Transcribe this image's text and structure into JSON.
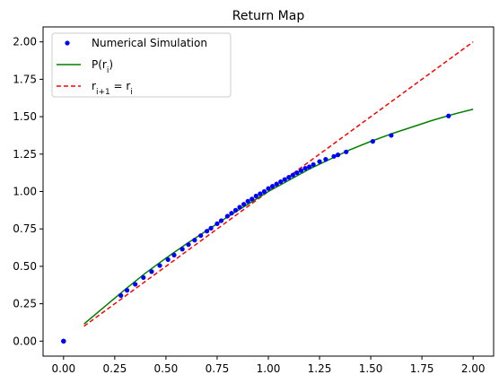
{
  "chart_data": {
    "type": "scatter",
    "title": "Return Map",
    "xlabel": "",
    "ylabel": "",
    "xlim": [
      -0.1,
      2.1
    ],
    "ylim": [
      -0.1,
      2.1
    ],
    "xticks": [
      "0.00",
      "0.25",
      "0.50",
      "0.75",
      "1.00",
      "1.25",
      "1.50",
      "1.75",
      "2.00"
    ],
    "yticks": [
      "0.00",
      "0.25",
      "0.50",
      "0.75",
      "1.00",
      "1.25",
      "1.50",
      "1.75",
      "2.00"
    ],
    "grid": false,
    "legend_position": "top-left",
    "series": [
      {
        "name": "Numerical Simulation",
        "kind": "scatter",
        "color": "#0000ff",
        "x": [
          0.0,
          0.0,
          0.0,
          0.0,
          0.0,
          0.28,
          0.31,
          0.35,
          0.39,
          0.43,
          0.47,
          0.51,
          0.54,
          0.58,
          0.61,
          0.64,
          0.67,
          0.7,
          0.72,
          0.75,
          0.77,
          0.8,
          0.82,
          0.84,
          0.86,
          0.88,
          0.9,
          0.92,
          0.94,
          0.96,
          0.98,
          1.0,
          1.02,
          1.04,
          1.06,
          1.08,
          1.1,
          1.12,
          1.14,
          1.16,
          1.18,
          1.2,
          1.22,
          1.25,
          1.28,
          1.32,
          1.34,
          1.38,
          1.51,
          1.6,
          1.88
        ],
        "y": [
          0.0,
          0.0,
          0.0,
          0.0,
          0.0,
          0.305,
          0.34,
          0.38,
          0.425,
          0.465,
          0.505,
          0.545,
          0.575,
          0.615,
          0.645,
          0.675,
          0.705,
          0.735,
          0.755,
          0.785,
          0.805,
          0.835,
          0.855,
          0.875,
          0.895,
          0.915,
          0.935,
          0.95,
          0.97,
          0.985,
          1.0,
          1.02,
          1.035,
          1.05,
          1.065,
          1.08,
          1.095,
          1.11,
          1.125,
          1.14,
          1.155,
          1.165,
          1.18,
          1.2,
          1.215,
          1.235,
          1.245,
          1.265,
          1.335,
          1.375,
          1.505
        ]
      },
      {
        "name": "P(r_i)",
        "kind": "line",
        "color": "#008000",
        "x": [
          0.1,
          0.2,
          0.3,
          0.4,
          0.5,
          0.6,
          0.7,
          0.8,
          0.9,
          1.0,
          1.1,
          1.2,
          1.3,
          1.4,
          1.5,
          1.6,
          1.7,
          1.8,
          1.9,
          2.0
        ],
        "y": [
          0.115,
          0.23,
          0.345,
          0.455,
          0.555,
          0.65,
          0.74,
          0.83,
          0.915,
          1.0,
          1.075,
          1.15,
          1.215,
          1.28,
          1.335,
          1.385,
          1.43,
          1.475,
          1.515,
          1.55
        ]
      },
      {
        "name": "r_{i+1} = r_i",
        "kind": "dashed-line",
        "color": "#ff0000",
        "x": [
          0.1,
          2.0
        ],
        "y": [
          0.1,
          2.0
        ]
      }
    ]
  }
}
